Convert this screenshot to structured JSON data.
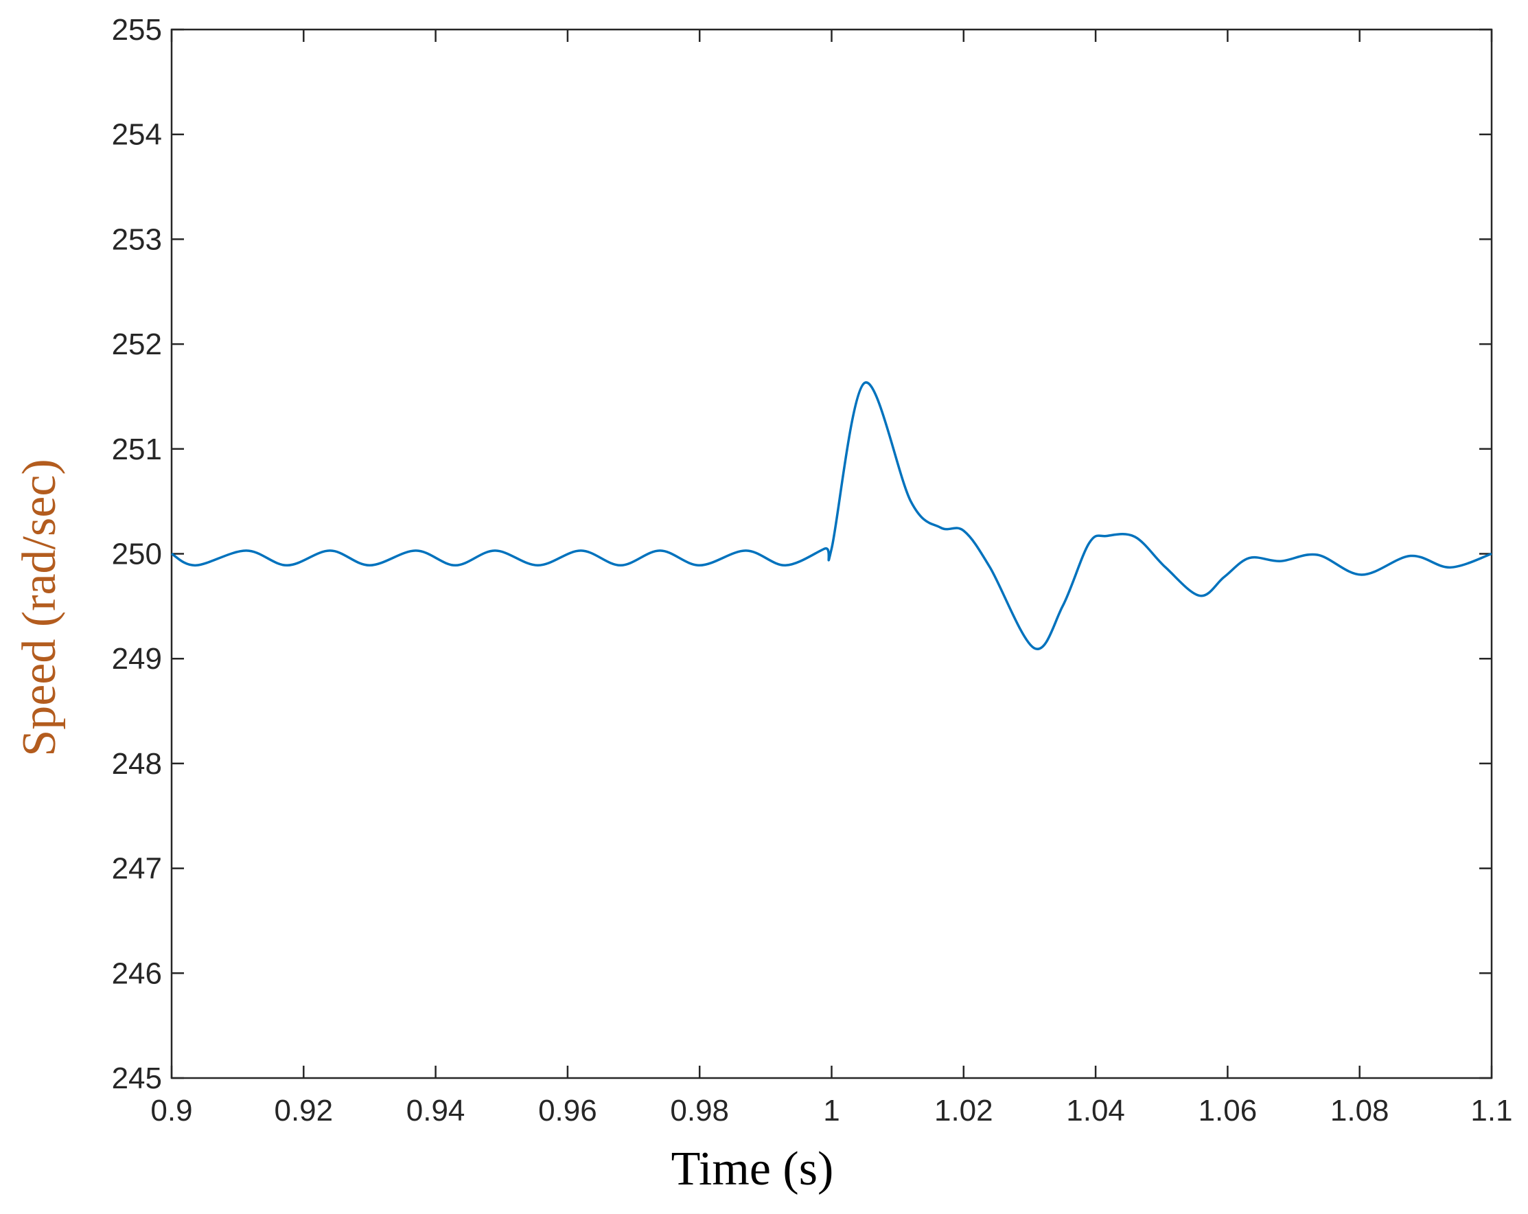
{
  "chart_data": {
    "type": "line",
    "x_label": "Time (s)",
    "y_label": "Speed (rad/sec)",
    "y_label_color": "#b35c1e",
    "xlim": [
      0.9,
      1.1
    ],
    "ylim": [
      245,
      255
    ],
    "xticks": [
      0.9,
      0.92,
      0.94,
      0.96,
      0.98,
      1,
      1.02,
      1.04,
      1.06,
      1.08,
      1.1
    ],
    "yticks": [
      245,
      246,
      247,
      248,
      249,
      250,
      251,
      252,
      253,
      254,
      255
    ],
    "grid": false,
    "series": [
      {
        "name": "Speed",
        "color": "#0072bd",
        "x": [
          0.9,
          0.9037,
          0.9113,
          0.9175,
          0.924,
          0.93,
          0.937,
          0.943,
          0.949,
          0.9555,
          0.962,
          0.968,
          0.974,
          0.98,
          0.987,
          0.993,
          0.999,
          1.0,
          1.005,
          1.012,
          1.0165,
          1.02,
          1.024,
          1.0307,
          1.035,
          1.039,
          1.0417,
          1.046,
          1.0506,
          1.0558,
          1.0595,
          1.0633,
          1.068,
          1.0736,
          1.0803,
          1.0877,
          1.0937,
          1.1
        ],
        "values": [
          250.0,
          249.89,
          250.03,
          249.89,
          250.03,
          249.89,
          250.03,
          249.89,
          250.03,
          249.89,
          250.03,
          249.89,
          250.03,
          249.89,
          250.03,
          249.89,
          250.05,
          250.05,
          251.63,
          250.5,
          250.25,
          250.22,
          249.87,
          249.1,
          249.5,
          250.1,
          250.17,
          250.16,
          249.87,
          249.6,
          249.78,
          249.96,
          249.93,
          249.99,
          249.8,
          249.98,
          249.87,
          250.0
        ]
      }
    ]
  }
}
